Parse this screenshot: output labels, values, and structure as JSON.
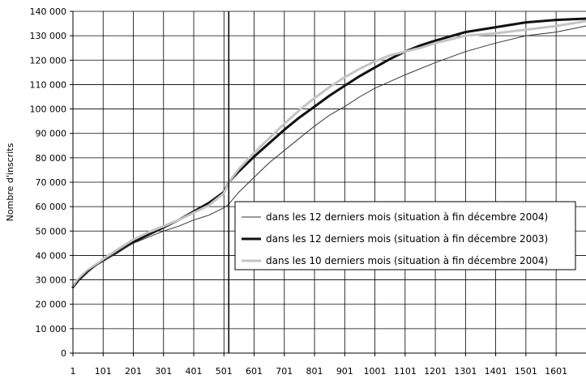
{
  "chart_data": {
    "type": "line",
    "title": "",
    "xlabel": "",
    "ylabel": "Nombre d'inscrits",
    "xlim": [
      1,
      1700
    ],
    "ylim": [
      0,
      140000
    ],
    "x_ticks": [
      1,
      101,
      201,
      301,
      401,
      501,
      601,
      701,
      801,
      901,
      1001,
      1101,
      1201,
      1301,
      1401,
      1501,
      1601
    ],
    "x_tick_labels": [
      "1",
      "101",
      "201",
      "301",
      "401",
      "501",
      "601",
      "701",
      "801",
      "901",
      "1001",
      "1101",
      "1201",
      "1301",
      "1401",
      "1501",
      "1601"
    ],
    "y_ticks": [
      0,
      10000,
      20000,
      30000,
      40000,
      50000,
      60000,
      70000,
      80000,
      90000,
      100000,
      110000,
      120000,
      130000,
      140000
    ],
    "y_tick_labels": [
      "0",
      "10 000",
      "20 000",
      "30 000",
      "40 000",
      "50 000",
      "60 000",
      "70 000",
      "80 000",
      "90 000",
      "100 000",
      "110 000",
      "120 000",
      "130 000",
      "140 000"
    ],
    "grid": true,
    "vertical_marker_x": 517,
    "legend_position": "center-right",
    "series": [
      {
        "name": "dans les 12 derniers mois (situation à fin décembre 2004)",
        "color": "#333333",
        "width": 1,
        "x": [
          1,
          20,
          50,
          80,
          101,
          150,
          201,
          251,
          301,
          351,
          401,
          451,
          501,
          517,
          551,
          601,
          651,
          701,
          751,
          801,
          851,
          901,
          951,
          1001,
          1101,
          1201,
          1301,
          1401,
          1501,
          1601,
          1700
        ],
        "y": [
          26500,
          30000,
          33500,
          36000,
          37500,
          41500,
          45000,
          47500,
          50000,
          52000,
          54500,
          56500,
          59500,
          61000,
          66000,
          72000,
          78000,
          83000,
          88000,
          93000,
          97500,
          101000,
          105000,
          108500,
          114000,
          119000,
          123500,
          127000,
          130000,
          131500,
          134000
        ]
      },
      {
        "name": "dans les 12 derniers mois (situation à fin décembre 2003)",
        "color": "#111111",
        "width": 3,
        "x": [
          1,
          20,
          50,
          80,
          101,
          150,
          201,
          251,
          301,
          351,
          401,
          451,
          501,
          517,
          551,
          601,
          651,
          701,
          751,
          801,
          851,
          901,
          951,
          1001,
          1051,
          1101,
          1151,
          1201,
          1301,
          1401,
          1501,
          1601,
          1700
        ],
        "y": [
          27000,
          30000,
          33500,
          36500,
          38000,
          41500,
          45500,
          48500,
          51500,
          54500,
          58000,
          61500,
          66000,
          70000,
          74500,
          80500,
          86000,
          91500,
          96500,
          101000,
          105500,
          109500,
          113500,
          117000,
          120500,
          123500,
          126000,
          128000,
          131500,
          133500,
          135500,
          136500,
          137000
        ]
      },
      {
        "name": "dans les 10 derniers mois (situation à fin décembre 2004)",
        "color": "#c4c4c4",
        "width": 3,
        "x": [
          1,
          20,
          50,
          80,
          101,
          150,
          201,
          251,
          301,
          351,
          401,
          451,
          501,
          517,
          551,
          601,
          651,
          701,
          751,
          801,
          851,
          901,
          951,
          1001,
          1051,
          1101,
          1151,
          1201,
          1301,
          1401,
          1501,
          1601,
          1700
        ],
        "y": [
          27500,
          30500,
          34000,
          36500,
          38500,
          42500,
          46500,
          49500,
          52000,
          54500,
          57500,
          60500,
          65500,
          70000,
          75500,
          82000,
          88000,
          94000,
          99500,
          104500,
          109000,
          113000,
          116500,
          119500,
          122000,
          123500,
          125000,
          127000,
          130000,
          131000,
          132500,
          134000,
          136000
        ]
      }
    ]
  }
}
